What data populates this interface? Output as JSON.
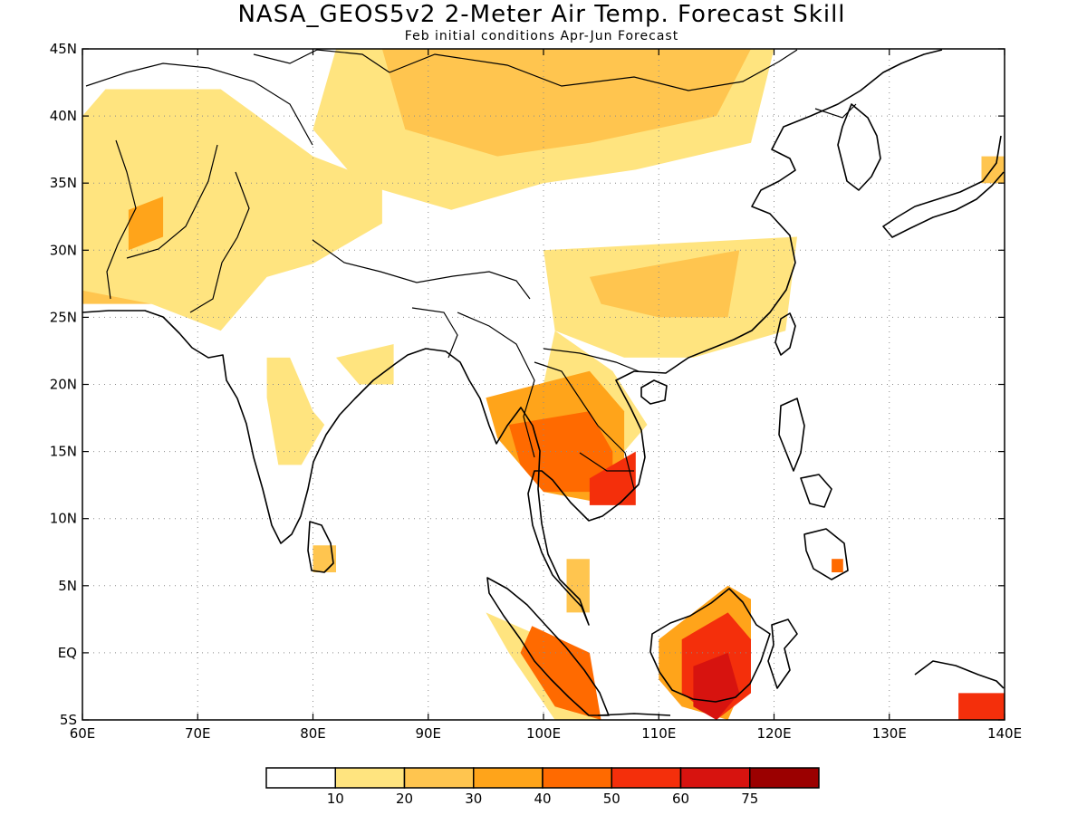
{
  "title": "NASA_GEOS5v2 2-Meter Air Temp. Forecast Skill",
  "subtitle": "Feb initial conditions  Apr-Jun Forecast",
  "map": {
    "lon_range": [
      60,
      140
    ],
    "lat_range": [
      -5,
      45
    ],
    "lon_labels": [
      "60E",
      "70E",
      "80E",
      "90E",
      "100E",
      "110E",
      "120E",
      "130E",
      "140E"
    ],
    "lat_labels": [
      "45N",
      "40N",
      "35N",
      "30N",
      "25N",
      "20N",
      "15N",
      "10N",
      "5N",
      "EQ",
      "5S"
    ],
    "regions": [
      {
        "level": 2,
        "coords": [
          [
            60,
            38
          ],
          [
            75,
            38
          ],
          [
            79,
            33
          ],
          [
            74,
            29
          ],
          [
            68,
            26
          ],
          [
            60,
            26
          ]
        ]
      },
      {
        "level": 1,
        "coords": [
          [
            62,
            42
          ],
          [
            72,
            42
          ],
          [
            80,
            37
          ],
          [
            86,
            35
          ],
          [
            86,
            32
          ],
          [
            80,
            29
          ],
          [
            76,
            28
          ],
          [
            72,
            24
          ],
          [
            66,
            26
          ],
          [
            60,
            27
          ],
          [
            60,
            40
          ]
        ]
      },
      {
        "level": 3,
        "coords": [
          [
            64,
            33
          ],
          [
            67,
            34
          ],
          [
            67,
            31
          ],
          [
            64,
            30
          ]
        ]
      },
      {
        "level": 1,
        "coords": [
          [
            82,
            45
          ],
          [
            120,
            45
          ],
          [
            118,
            38
          ],
          [
            108,
            36
          ],
          [
            100,
            35
          ],
          [
            92,
            33
          ],
          [
            84,
            35
          ],
          [
            80,
            39
          ]
        ]
      },
      {
        "level": 2,
        "coords": [
          [
            86,
            45
          ],
          [
            118,
            45
          ],
          [
            115,
            40
          ],
          [
            104,
            38
          ],
          [
            96,
            37
          ],
          [
            88,
            39
          ]
        ]
      },
      {
        "level": 1,
        "coords": [
          [
            100,
            30
          ],
          [
            122,
            31
          ],
          [
            121,
            24
          ],
          [
            113,
            22
          ],
          [
            107,
            22
          ],
          [
            101,
            24
          ]
        ]
      },
      {
        "level": 2,
        "coords": [
          [
            104,
            28
          ],
          [
            117,
            30
          ],
          [
            116,
            25
          ],
          [
            110,
            25
          ],
          [
            105,
            26
          ]
        ]
      },
      {
        "level": 1,
        "coords": [
          [
            101,
            24
          ],
          [
            106,
            21
          ],
          [
            109,
            17
          ],
          [
            107,
            15
          ],
          [
            103,
            17
          ],
          [
            100,
            20
          ]
        ]
      },
      {
        "level": 1,
        "coords": [
          [
            76,
            22
          ],
          [
            78,
            22
          ],
          [
            80,
            18
          ],
          [
            81,
            17
          ],
          [
            79,
            14
          ],
          [
            77,
            14
          ],
          [
            76,
            19
          ]
        ]
      },
      {
        "level": 1,
        "coords": [
          [
            82,
            22
          ],
          [
            87,
            23
          ],
          [
            87,
            20
          ],
          [
            84,
            20
          ]
        ]
      },
      {
        "level": 3,
        "coords": [
          [
            95,
            19
          ],
          [
            104,
            21
          ],
          [
            107,
            18
          ],
          [
            107,
            14
          ],
          [
            106,
            11
          ],
          [
            100,
            12
          ],
          [
            96,
            16
          ]
        ]
      },
      {
        "level": 4,
        "coords": [
          [
            97,
            17
          ],
          [
            104,
            18
          ],
          [
            106,
            15
          ],
          [
            106,
            12
          ],
          [
            100,
            12
          ],
          [
            98,
            14
          ]
        ]
      },
      {
        "level": 5,
        "coords": [
          [
            104,
            13
          ],
          [
            108,
            15
          ],
          [
            108,
            11
          ],
          [
            104,
            11
          ]
        ]
      },
      {
        "level": 1,
        "coords": [
          [
            95,
            3
          ],
          [
            103,
            0
          ],
          [
            105,
            -5
          ],
          [
            101,
            -5
          ],
          [
            97,
            0
          ]
        ]
      },
      {
        "level": 4,
        "coords": [
          [
            99,
            2
          ],
          [
            104,
            0
          ],
          [
            105,
            -5
          ],
          [
            101,
            -4
          ],
          [
            98,
            0
          ]
        ]
      },
      {
        "level": 3,
        "coords": [
          [
            110,
            1
          ],
          [
            116,
            5
          ],
          [
            118,
            4
          ],
          [
            118,
            -1
          ],
          [
            116,
            -5
          ],
          [
            112,
            -4
          ],
          [
            110,
            -2
          ]
        ]
      },
      {
        "level": 5,
        "coords": [
          [
            112,
            1
          ],
          [
            116,
            3
          ],
          [
            118,
            1
          ],
          [
            118,
            -3
          ],
          [
            115,
            -5
          ],
          [
            112,
            -3
          ]
        ]
      },
      {
        "level": 6,
        "coords": [
          [
            113,
            -1
          ],
          [
            116,
            0
          ],
          [
            117,
            -3
          ],
          [
            115,
            -5
          ],
          [
            113,
            -4
          ]
        ]
      },
      {
        "level": 5,
        "coords": [
          [
            136,
            -3
          ],
          [
            140,
            -3
          ],
          [
            140,
            -5
          ],
          [
            136,
            -5
          ]
        ]
      },
      {
        "level": 2,
        "coords": [
          [
            80,
            8
          ],
          [
            82,
            8
          ],
          [
            82,
            6
          ],
          [
            80,
            6
          ]
        ]
      },
      {
        "level": 4,
        "coords": [
          [
            125,
            7
          ],
          [
            126,
            7
          ],
          [
            126,
            6
          ],
          [
            125,
            6
          ]
        ]
      },
      {
        "level": 2,
        "coords": [
          [
            102,
            7
          ],
          [
            104,
            7
          ],
          [
            104,
            3
          ],
          [
            102,
            3
          ]
        ]
      },
      {
        "level": 2,
        "coords": [
          [
            138,
            37
          ],
          [
            140,
            37
          ],
          [
            140,
            35
          ],
          [
            138,
            35
          ]
        ]
      }
    ]
  },
  "colorbar": {
    "colors": [
      "#ffffff",
      "#ffe47f",
      "#ffc54f",
      "#ffa41a",
      "#ff6a00",
      "#f42f0b",
      "#d7130f",
      "#9b0000"
    ],
    "tick_labels": [
      "10",
      "20",
      "30",
      "40",
      "50",
      "60",
      "75"
    ]
  }
}
